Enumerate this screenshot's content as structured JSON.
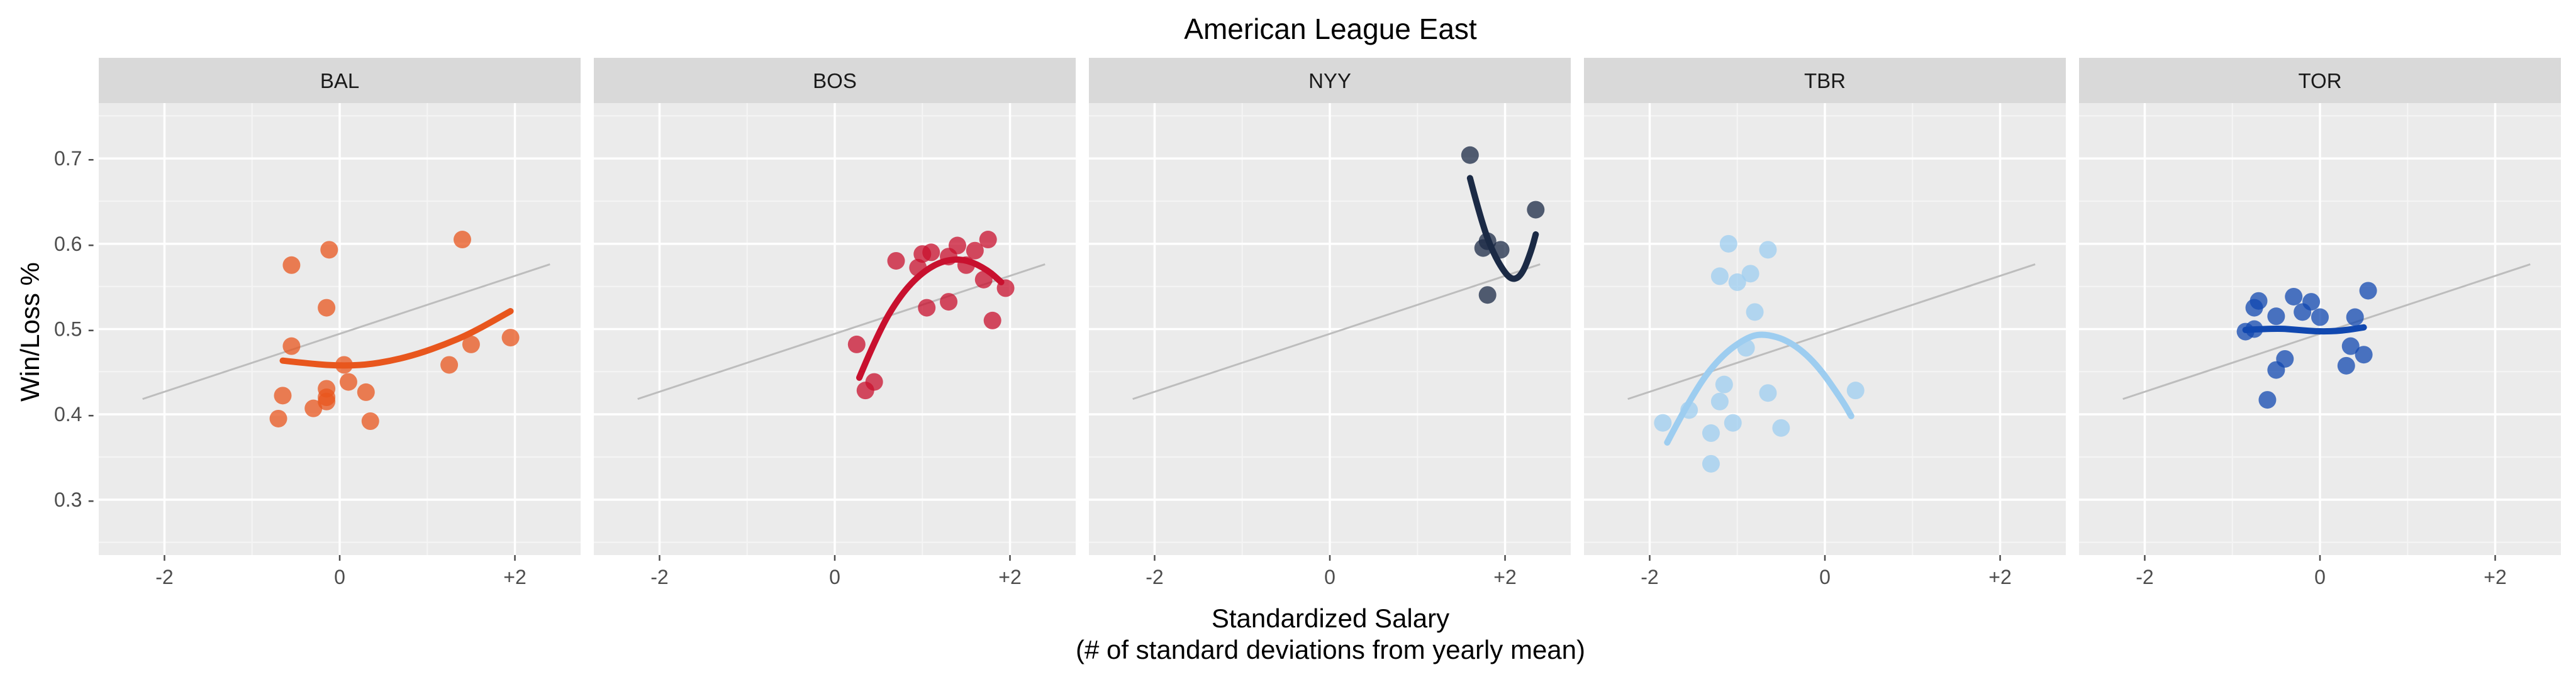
{
  "chart_data": {
    "type": "scatter",
    "title": "American League East",
    "xlabel_lines": [
      "Standardized Salary",
      "(# of standard deviations from yearly mean)"
    ],
    "ylabel": "Win/Loss %",
    "xlim": [
      -2.75,
      2.75
    ],
    "ylim": [
      0.235,
      0.765
    ],
    "x_ticks": [
      -2,
      0,
      2
    ],
    "x_tick_labels": [
      "-2",
      "0",
      "+2"
    ],
    "y_ticks": [
      0.3,
      0.4,
      0.5,
      0.6,
      0.7
    ],
    "y_tick_labels": [
      "0.3 -",
      "0.4 -",
      "0.5 -",
      "0.6 -",
      "0.7 -"
    ],
    "grid": true,
    "facet_background": "#ebebeb",
    "strip_background": "#d9d9d9",
    "reference_line": {
      "color": "#bdbdbd",
      "points": [
        [
          -2.25,
          0.418
        ],
        [
          2.4,
          0.576
        ]
      ]
    },
    "panels": [
      {
        "label": "BAL",
        "color": "#e8561d",
        "points": [
          [
            -0.55,
            0.575
          ],
          [
            -0.12,
            0.593
          ],
          [
            1.4,
            0.605
          ],
          [
            -0.55,
            0.48
          ],
          [
            -0.15,
            0.525
          ],
          [
            1.5,
            0.482
          ],
          [
            1.95,
            0.49
          ],
          [
            1.25,
            0.458
          ],
          [
            0.05,
            0.458
          ],
          [
            0.1,
            0.438
          ],
          [
            -0.65,
            0.422
          ],
          [
            -0.15,
            0.43
          ],
          [
            -0.15,
            0.42
          ],
          [
            0.3,
            0.426
          ],
          [
            -0.3,
            0.407
          ],
          [
            -0.15,
            0.415
          ],
          [
            -0.7,
            0.395
          ],
          [
            0.35,
            0.392
          ]
        ],
        "fit": [
          [
            -0.65,
            0.463
          ],
          [
            -0.3,
            0.459
          ],
          [
            0.0,
            0.457
          ],
          [
            0.3,
            0.458
          ],
          [
            0.6,
            0.463
          ],
          [
            0.9,
            0.471
          ],
          [
            1.2,
            0.482
          ],
          [
            1.5,
            0.495
          ],
          [
            1.95,
            0.521
          ]
        ]
      },
      {
        "label": "BOS",
        "color": "#c8102e",
        "points": [
          [
            1.75,
            0.605
          ],
          [
            1.4,
            0.598
          ],
          [
            1.6,
            0.592
          ],
          [
            0.7,
            0.58
          ],
          [
            1.0,
            0.588
          ],
          [
            1.1,
            0.59
          ],
          [
            1.5,
            0.575
          ],
          [
            1.3,
            0.585
          ],
          [
            0.95,
            0.572
          ],
          [
            1.7,
            0.558
          ],
          [
            1.95,
            0.548
          ],
          [
            1.05,
            0.525
          ],
          [
            1.3,
            0.532
          ],
          [
            1.8,
            0.51
          ],
          [
            0.25,
            0.482
          ],
          [
            0.45,
            0.438
          ],
          [
            0.35,
            0.428
          ]
        ],
        "fit": [
          [
            0.28,
            0.443
          ],
          [
            0.5,
            0.497
          ],
          [
            0.75,
            0.54
          ],
          [
            1.0,
            0.567
          ],
          [
            1.25,
            0.581
          ],
          [
            1.5,
            0.582
          ],
          [
            1.75,
            0.569
          ],
          [
            1.9,
            0.555
          ]
        ]
      },
      {
        "label": "NYY",
        "color": "#1b2a45",
        "points": [
          [
            1.6,
            0.704
          ],
          [
            2.35,
            0.64
          ],
          [
            1.8,
            0.603
          ],
          [
            1.75,
            0.595
          ],
          [
            1.95,
            0.593
          ],
          [
            1.8,
            0.54
          ]
        ],
        "fit": [
          [
            1.6,
            0.677
          ],
          [
            1.72,
            0.63
          ],
          [
            1.85,
            0.592
          ],
          [
            2.0,
            0.565
          ],
          [
            2.1,
            0.557
          ],
          [
            2.2,
            0.565
          ],
          [
            2.3,
            0.592
          ],
          [
            2.35,
            0.611
          ]
        ]
      },
      {
        "label": "TBR",
        "color": "#9dcdf0",
        "points": [
          [
            -1.1,
            0.6
          ],
          [
            -0.65,
            0.593
          ],
          [
            -1.2,
            0.562
          ],
          [
            -0.85,
            0.565
          ],
          [
            -1.0,
            0.555
          ],
          [
            -0.8,
            0.52
          ],
          [
            -0.9,
            0.478
          ],
          [
            -1.15,
            0.435
          ],
          [
            -1.2,
            0.415
          ],
          [
            -0.65,
            0.425
          ],
          [
            -1.55,
            0.405
          ],
          [
            -1.85,
            0.39
          ],
          [
            -1.05,
            0.39
          ],
          [
            -1.3,
            0.378
          ],
          [
            -0.5,
            0.384
          ],
          [
            0.35,
            0.428
          ],
          [
            -1.3,
            0.342
          ]
        ],
        "fit": [
          [
            -1.8,
            0.367
          ],
          [
            -1.5,
            0.426
          ],
          [
            -1.2,
            0.467
          ],
          [
            -0.9,
            0.49
          ],
          [
            -0.7,
            0.495
          ],
          [
            -0.4,
            0.486
          ],
          [
            -0.1,
            0.46
          ],
          [
            0.2,
            0.416
          ],
          [
            0.3,
            0.398
          ]
        ]
      },
      {
        "label": "TOR",
        "color": "#1148b0",
        "points": [
          [
            -0.7,
            0.533
          ],
          [
            -0.75,
            0.525
          ],
          [
            0.55,
            0.545
          ],
          [
            -0.3,
            0.538
          ],
          [
            -0.1,
            0.532
          ],
          [
            -0.5,
            0.515
          ],
          [
            -0.2,
            0.52
          ],
          [
            0.0,
            0.514
          ],
          [
            0.4,
            0.514
          ],
          [
            -0.85,
            0.497
          ],
          [
            -0.75,
            0.5
          ],
          [
            0.35,
            0.48
          ],
          [
            0.5,
            0.47
          ],
          [
            -0.4,
            0.465
          ],
          [
            0.3,
            0.457
          ],
          [
            -0.5,
            0.452
          ],
          [
            -0.6,
            0.417
          ]
        ],
        "fit": [
          [
            -0.85,
            0.499
          ],
          [
            -0.5,
            0.501
          ],
          [
            -0.25,
            0.499
          ],
          [
            0.0,
            0.497
          ],
          [
            0.25,
            0.498
          ],
          [
            0.5,
            0.502
          ]
        ]
      }
    ]
  }
}
